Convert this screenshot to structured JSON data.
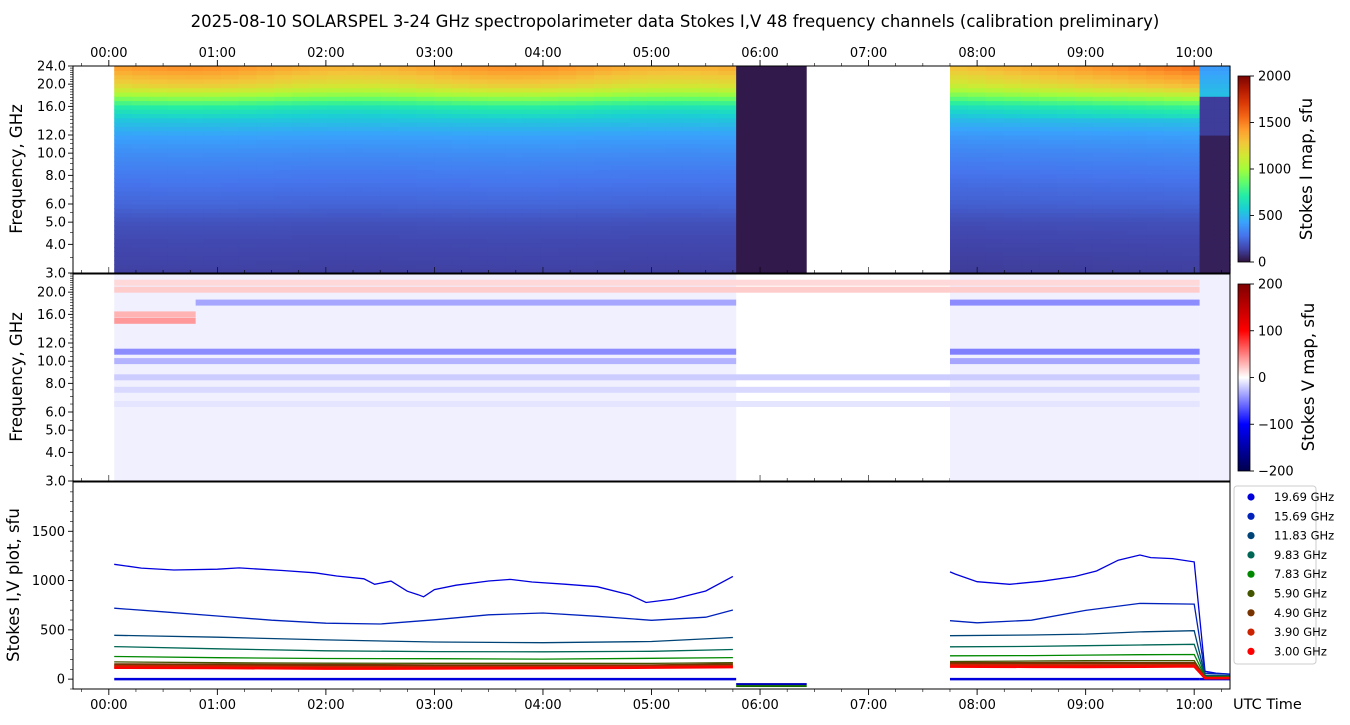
{
  "title": "2025-08-10  SOLARSPEL  3-24 GHz spectropolarimeter data   Stokes I,V   48 frequency channels   (calibration preliminary)",
  "x_axis": {
    "label": "UTC Time",
    "range_hours": [
      -0.33,
      10.33
    ],
    "ticks": [
      {
        "v": 0,
        "label": "00:00"
      },
      {
        "v": 1,
        "label": "01:00"
      },
      {
        "v": 2,
        "label": "02:00"
      },
      {
        "v": 3,
        "label": "03:00"
      },
      {
        "v": 4,
        "label": "04:00"
      },
      {
        "v": 5,
        "label": "05:00"
      },
      {
        "v": 6,
        "label": "06:00"
      },
      {
        "v": 7,
        "label": "07:00"
      },
      {
        "v": 8,
        "label": "08:00"
      },
      {
        "v": 9,
        "label": "09:00"
      },
      {
        "v": 10,
        "label": "10:00"
      }
    ]
  },
  "colors": {
    "stokes_i_colormap": [
      "#30123b",
      "#4145ab",
      "#4675ed",
      "#39a2fc",
      "#1bcfd4",
      "#24eca6",
      "#61fc6c",
      "#a4fc3b",
      "#d1e834",
      "#f3c63a",
      "#fe9b2d",
      "#f36315",
      "#d93806",
      "#b11901",
      "#7a0403"
    ],
    "stokes_v_colormap": [
      "#00004c",
      "#0000ff",
      "#ffffff",
      "#ff0000",
      "#7f0000"
    ]
  },
  "chart_data": [
    {
      "type": "heatmap",
      "panel": "stokes-i-map",
      "ylabel": "Frequency, GHz",
      "yscale": "log",
      "ylim": [
        3.0,
        24.0
      ],
      "y_ticks": [
        {
          "v": 3.0,
          "label": "3.0"
        },
        {
          "v": 4.0,
          "label": "4.0"
        },
        {
          "v": 5.0,
          "label": "5.0"
        },
        {
          "v": 6.0,
          "label": "6.0"
        },
        {
          "v": 8.0,
          "label": "8.0"
        },
        {
          "v": 10.0,
          "label": "10.0"
        },
        {
          "v": 12.0,
          "label": "12.0"
        },
        {
          "v": 16.0,
          "label": "16.0"
        },
        {
          "v": 20.0,
          "label": "20.0"
        },
        {
          "v": 24.0,
          "label": "24.0"
        }
      ],
      "colorbar": {
        "label": "Stokes I map, sfu",
        "range": [
          0,
          2000
        ],
        "ticks": [
          {
            "v": 0,
            "label": "0"
          },
          {
            "v": 500,
            "label": "500"
          },
          {
            "v": 1000,
            "label": "1000"
          },
          {
            "v": 1500,
            "label": "1500"
          },
          {
            "v": 2000,
            "label": "2000"
          }
        ]
      },
      "observation_segments": [
        {
          "start": 0.05,
          "end": 5.78,
          "kind": "data"
        },
        {
          "start": 5.78,
          "end": 6.43,
          "kind": "saturated-low"
        },
        {
          "start": 7.75,
          "end": 10.05,
          "kind": "data"
        },
        {
          "start": 10.05,
          "end": 10.33,
          "kind": "decay"
        }
      ],
      "spectrum_profile": [
        {
          "freq": 3.0,
          "value": 130
        },
        {
          "freq": 4.0,
          "value": 150
        },
        {
          "freq": 5.0,
          "value": 180
        },
        {
          "freq": 6.0,
          "value": 240
        },
        {
          "freq": 8.0,
          "value": 300
        },
        {
          "freq": 10.0,
          "value": 360
        },
        {
          "freq": 12.0,
          "value": 430
        },
        {
          "freq": 14.0,
          "value": 540
        },
        {
          "freq": 16.0,
          "value": 700
        },
        {
          "freq": 17.5,
          "value": 920
        },
        {
          "freq": 19.0,
          "value": 1120
        },
        {
          "freq": 20.0,
          "value": 1220
        },
        {
          "freq": 22.0,
          "value": 1320
        },
        {
          "freq": 24.0,
          "value": 1420
        }
      ]
    },
    {
      "type": "heatmap",
      "panel": "stokes-v-map",
      "ylabel": "Frequency, GHz",
      "yscale": "log",
      "ylim": [
        3.0,
        24.0
      ],
      "y_ticks": [
        {
          "v": 3.0,
          "label": "3.0"
        },
        {
          "v": 4.0,
          "label": "4.0"
        },
        {
          "v": 5.0,
          "label": "5.0"
        },
        {
          "v": 6.0,
          "label": "6.0"
        },
        {
          "v": 8.0,
          "label": "8.0"
        },
        {
          "v": 10.0,
          "label": "10.0"
        },
        {
          "v": 12.0,
          "label": "12.0"
        },
        {
          "v": 16.0,
          "label": "16.0"
        },
        {
          "v": 20.0,
          "label": "20.0"
        }
      ],
      "colorbar": {
        "label": "Stokes V map, sfu",
        "range": [
          -200,
          200
        ],
        "ticks": [
          {
            "v": -200,
            "label": "−200"
          },
          {
            "v": -100,
            "label": "−100"
          },
          {
            "v": 0,
            "label": "0"
          },
          {
            "v": 100,
            "label": "100"
          },
          {
            "v": 200,
            "label": "200"
          }
        ]
      },
      "bands": [
        {
          "freq": 22.0,
          "value": 15,
          "start": 0.05,
          "end": 10.05
        },
        {
          "freq": 20.5,
          "value": 20,
          "start": 0.05,
          "end": 10.05
        },
        {
          "freq": 18.0,
          "value": -35,
          "start": 0.8,
          "end": 5.78
        },
        {
          "freq": 18.0,
          "value": -45,
          "start": 7.75,
          "end": 10.05
        },
        {
          "freq": 16.0,
          "value": 30,
          "start": 0.05,
          "end": 0.8
        },
        {
          "freq": 15.0,
          "value": 40,
          "start": 0.05,
          "end": 0.8
        },
        {
          "freq": 11.0,
          "value": -45,
          "start": 0.05,
          "end": 5.78
        },
        {
          "freq": 11.0,
          "value": -50,
          "start": 7.75,
          "end": 10.05
        },
        {
          "freq": 10.0,
          "value": -30,
          "start": 0.05,
          "end": 5.78
        },
        {
          "freq": 10.0,
          "value": -35,
          "start": 7.75,
          "end": 10.05
        },
        {
          "freq": 8.5,
          "value": -20,
          "start": 0.05,
          "end": 10.05
        },
        {
          "freq": 7.5,
          "value": -15,
          "start": 0.05,
          "end": 10.05
        },
        {
          "freq": 6.5,
          "value": -10,
          "start": 0.05,
          "end": 10.05
        }
      ]
    },
    {
      "type": "line",
      "panel": "stokes-iv-plot",
      "ylabel": "Stokes I,V plot, sfu",
      "ylim": [
        -100,
        2000
      ],
      "y_ticks": [
        {
          "v": 0,
          "label": "0"
        },
        {
          "v": 500,
          "label": "500"
        },
        {
          "v": 1000,
          "label": "1000"
        },
        {
          "v": 1500,
          "label": "1500"
        }
      ],
      "series": [
        {
          "name": "19.69 GHz",
          "color": "#0000dd",
          "x": [
            0.05,
            0.3,
            0.6,
            1.0,
            1.2,
            1.6,
            1.9,
            2.1,
            2.35,
            2.45,
            2.6,
            2.75,
            2.85,
            2.9,
            3.0,
            3.2,
            3.5,
            3.7,
            3.9,
            4.2,
            4.5,
            4.8,
            4.95,
            5.2,
            5.5,
            5.75,
            7.75,
            7.8,
            8.0,
            8.3,
            8.6,
            8.9,
            9.1,
            9.3,
            9.5,
            9.6,
            9.8,
            10.0,
            10.1,
            10.2,
            10.33
          ],
          "y": [
            1165,
            1120,
            1100,
            1115,
            1135,
            1110,
            1080,
            1040,
            1010,
            960,
            1000,
            900,
            860,
            830,
            900,
            950,
            1000,
            1020,
            990,
            960,
            930,
            850,
            780,
            820,
            900,
            1040,
            1080,
            1060,
            990,
            970,
            1000,
            1040,
            1090,
            1200,
            1260,
            1240,
            1230,
            1190,
            80,
            60,
            50
          ]
        },
        {
          "name": "15.69 GHz",
          "color": "#0022bb",
          "x": [
            0.05,
            0.5,
            1.0,
            1.5,
            2.0,
            2.5,
            3.0,
            3.5,
            4.0,
            4.5,
            5.0,
            5.5,
            5.75,
            7.75,
            8.0,
            8.5,
            9.0,
            9.5,
            10.0,
            10.1,
            10.33
          ],
          "y": [
            720,
            680,
            640,
            600,
            570,
            560,
            600,
            650,
            670,
            640,
            600,
            630,
            700,
            590,
            570,
            600,
            700,
            770,
            760,
            60,
            50
          ]
        },
        {
          "name": "11.83 GHz",
          "color": "#004477",
          "x": [
            0.05,
            1.0,
            2.0,
            3.0,
            4.0,
            5.0,
            5.75,
            7.75,
            8.5,
            9.0,
            9.5,
            10.0,
            10.1,
            10.33
          ],
          "y": [
            445,
            425,
            400,
            380,
            370,
            380,
            420,
            440,
            450,
            460,
            480,
            490,
            40,
            35
          ]
        },
        {
          "name": "9.83 GHz",
          "color": "#006655",
          "x": [
            0.05,
            1.0,
            2.0,
            3.0,
            4.0,
            5.0,
            5.75,
            7.75,
            8.5,
            9.0,
            9.5,
            10.0,
            10.1,
            10.33
          ],
          "y": [
            330,
            310,
            290,
            280,
            275,
            280,
            300,
            330,
            335,
            340,
            345,
            350,
            30,
            30
          ]
        },
        {
          "name": "7.83 GHz",
          "color": "#008800",
          "x": [
            0.05,
            1.0,
            2.0,
            3.0,
            4.0,
            5.0,
            5.75,
            7.75,
            8.5,
            9.0,
            9.5,
            10.0,
            10.1,
            10.33
          ],
          "y": [
            230,
            220,
            210,
            205,
            200,
            210,
            220,
            240,
            240,
            242,
            245,
            248,
            25,
            25
          ]
        },
        {
          "name": "5.90 GHz",
          "color": "#445500",
          "x": [
            0.05,
            1.0,
            2.0,
            3.0,
            4.0,
            5.0,
            5.75,
            7.75,
            8.5,
            9.0,
            9.5,
            10.0,
            10.1,
            10.33
          ],
          "y": [
            175,
            168,
            160,
            158,
            160,
            162,
            170,
            180,
            182,
            184,
            186,
            188,
            20,
            20
          ]
        },
        {
          "name": "4.90 GHz",
          "color": "#773300",
          "x": [
            0.05,
            1.0,
            2.0,
            3.0,
            4.0,
            5.0,
            5.75,
            7.75,
            8.5,
            9.0,
            9.5,
            10.0,
            10.1,
            10.33
          ],
          "y": [
            150,
            145,
            140,
            138,
            140,
            142,
            150,
            160,
            160,
            162,
            163,
            165,
            15,
            15
          ]
        },
        {
          "name": "3.90 GHz",
          "color": "#cc2200",
          "x": [
            0.05,
            1.0,
            2.0,
            3.0,
            4.0,
            5.0,
            5.75,
            7.75,
            8.5,
            9.0,
            9.5,
            10.0,
            10.1,
            10.33
          ],
          "y": [
            130,
            125,
            120,
            122,
            125,
            128,
            130,
            140,
            140,
            142,
            143,
            144,
            12,
            12
          ]
        },
        {
          "name": "3.00 GHz",
          "color": "#ff0000",
          "x": [
            0.05,
            1.0,
            2.0,
            3.0,
            4.0,
            5.0,
            5.75,
            7.75,
            8.5,
            9.0,
            9.5,
            10.0,
            10.1,
            10.33
          ],
          "y": [
            115,
            112,
            108,
            110,
            112,
            115,
            118,
            125,
            125,
            126,
            127,
            128,
            10,
            10
          ]
        }
      ],
      "stokes_v_baseline": {
        "x": [
          0.05,
          10.33
        ],
        "y": [
          0,
          0
        ],
        "color": "#0000dd"
      },
      "saturated_block": {
        "start": 5.78,
        "end": 6.43,
        "y_top": -40,
        "y_bottom": -80,
        "colors": [
          "#0000bb",
          "#116600"
        ]
      }
    }
  ]
}
